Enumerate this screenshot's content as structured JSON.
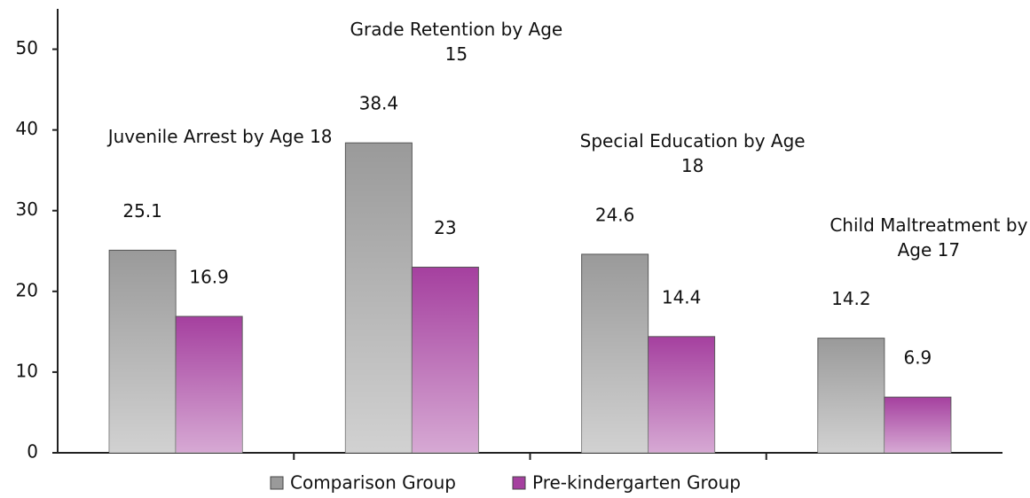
{
  "chart_data": {
    "type": "bar",
    "categories": [
      "Juvenile Arrest by Age 18",
      "Grade Retention by Age 15",
      "Special Education by Age 18",
      "Child Maltreatment by Age 17"
    ],
    "series": [
      {
        "name": "Comparison Group",
        "color": "#9a9a9a",
        "values": [
          25.1,
          38.4,
          24.6,
          14.2
        ]
      },
      {
        "name": "Pre-kindergarten Group",
        "color": "#a5409f",
        "values": [
          16.9,
          23,
          14.4,
          6.9
        ]
      }
    ],
    "ylim": [
      0,
      55
    ],
    "yticks": [
      0,
      10,
      20,
      30,
      40,
      50
    ],
    "legend": "bottom"
  }
}
